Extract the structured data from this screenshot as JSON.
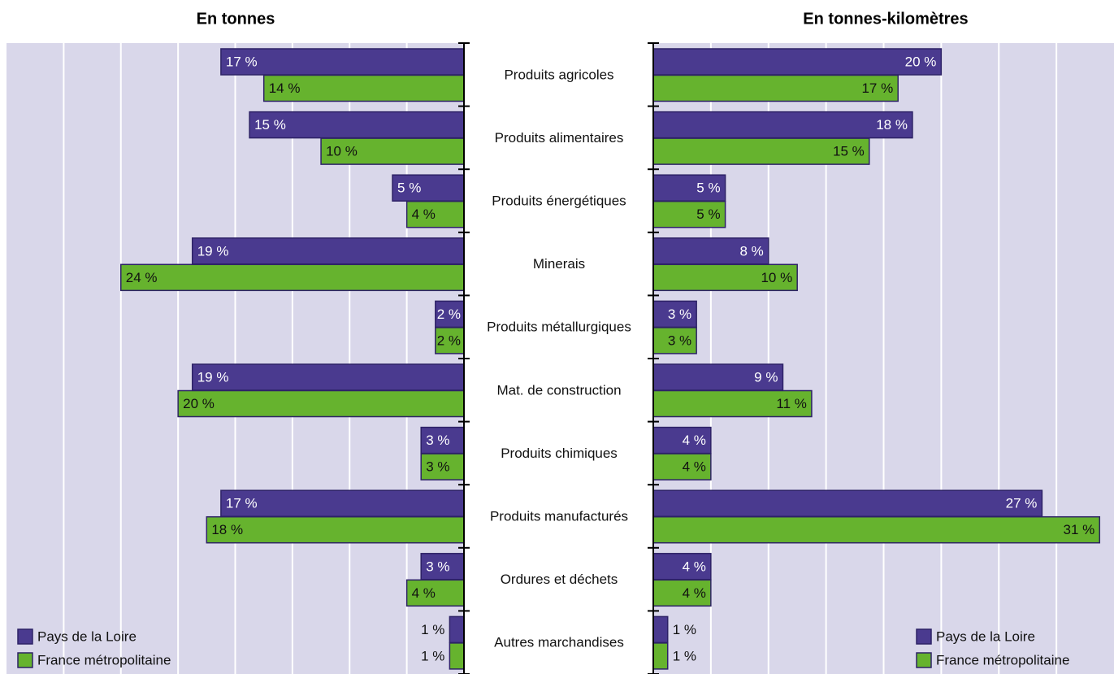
{
  "chart_data": {
    "type": "butterfly",
    "categories": [
      "Produits agricoles",
      "Produits alimentaires",
      "Produits énergétiques",
      "Minerais",
      "Produits métallurgiques",
      "Mat. de construction",
      "Produits chimiques",
      "Produits manufacturés",
      "Ordures et déchets",
      "Autres marchandises"
    ],
    "panels": [
      {
        "title": "En tonnes",
        "reversed": true,
        "xlim": [
          0,
          32
        ],
        "xticks": [
          4,
          8,
          12,
          16,
          20,
          24,
          28
        ],
        "grid": true,
        "legend": "lower left",
        "series": [
          {
            "name": "Pays de la Loire",
            "color": "#4a3a8f",
            "values": [
              17,
              15,
              5,
              19,
              2,
              19,
              3,
              17,
              3,
              1
            ],
            "value_labels": [
              "17 %",
              "15 %",
              "5 %",
              "19 %",
              "2 %",
              "19 %",
              "3 %",
              "17 %",
              "3 %",
              "1 %"
            ]
          },
          {
            "name": "France métropolitaine",
            "color": "#66b32e",
            "values": [
              14,
              10,
              4,
              24,
              2,
              20,
              3,
              18,
              4,
              1
            ],
            "value_labels": [
              "14 %",
              "10 %",
              "4 %",
              "24 %",
              "2 %",
              "20 %",
              "3 %",
              "18 %",
              "4 %",
              "1 %"
            ]
          }
        ]
      },
      {
        "title": "En tonnes-kilomètres",
        "reversed": false,
        "xlim": [
          0,
          32
        ],
        "xticks": [
          4,
          8,
          12,
          16,
          20,
          24,
          28
        ],
        "grid": true,
        "legend": "lower right",
        "series": [
          {
            "name": "Pays de la Loire",
            "color": "#4a3a8f",
            "values": [
              20,
              18,
              5,
              8,
              3,
              9,
              4,
              27,
              4,
              1
            ],
            "value_labels": [
              "20 %",
              "18 %",
              "5 %",
              "8 %",
              "3 %",
              "9 %",
              "4 %",
              "27 %",
              "4 %",
              "1 %"
            ]
          },
          {
            "name": "France métropolitaine",
            "color": "#66b32e",
            "values": [
              17,
              15,
              5,
              10,
              3,
              11,
              4,
              31,
              4,
              1
            ],
            "value_labels": [
              "17 %",
              "15 %",
              "5 %",
              "10 %",
              "3 %",
              "11 %",
              "4 %",
              "31 %",
              "4 %",
              "1 %"
            ]
          }
        ]
      }
    ]
  }
}
